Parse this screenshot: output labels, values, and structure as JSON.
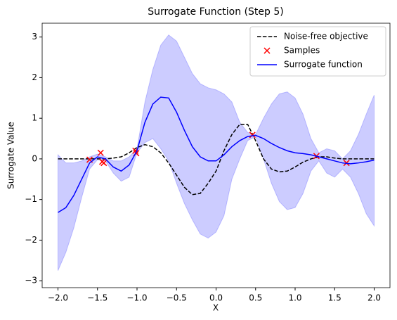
{
  "chart_data": {
    "type": "line",
    "title": "Surrogate Function (Step 5)",
    "xlabel": "X",
    "ylabel": "Surrogate Value",
    "xlim": [
      -2.2,
      2.2
    ],
    "ylim": [
      -3.17,
      3.34
    ],
    "xticks": [
      {
        "value": -2,
        "label": "−2.0"
      },
      {
        "value": -1.5,
        "label": "−1.5"
      },
      {
        "value": -1,
        "label": "−1.0"
      },
      {
        "value": -0.5,
        "label": "−0.5"
      },
      {
        "value": 0,
        "label": "0.0"
      },
      0.5,
      {
        "value": 1,
        "label": "1.0"
      },
      1.5,
      {
        "value": 2,
        "label": "2.0"
      }
    ],
    "yticks": [
      {
        "value": -3,
        "label": "−3"
      },
      {
        "value": -2,
        "label": "−2"
      },
      {
        "value": -1,
        "label": "−1"
      },
      0,
      1,
      2,
      3
    ],
    "legend": "upper right",
    "x": [
      -2.0,
      -1.9,
      -1.8,
      -1.7,
      -1.6,
      -1.5,
      -1.4,
      -1.3,
      -1.2,
      -1.1,
      -1.0,
      -0.9,
      -0.8,
      -0.7,
      -0.6,
      -0.5,
      -0.4,
      -0.3,
      -0.2,
      -0.1,
      0.0,
      0.1,
      0.2,
      0.3,
      0.4,
      0.5,
      0.6,
      0.7,
      0.8,
      0.9,
      1.0,
      1.1,
      1.2,
      1.3,
      1.4,
      1.5,
      1.6,
      1.7,
      1.8,
      1.9,
      2.0
    ],
    "band": {
      "color": "#0000ff",
      "opacity": 0.2,
      "upper": [
        0.1,
        -0.1,
        -0.1,
        -0.05,
        0.05,
        0.12,
        0.05,
        -0.05,
        -0.05,
        0.05,
        0.25,
        1.4,
        2.2,
        2.8,
        3.05,
        2.9,
        2.5,
        2.1,
        1.85,
        1.75,
        1.7,
        1.6,
        1.4,
        0.9,
        0.65,
        0.6,
        1.0,
        1.35,
        1.6,
        1.65,
        1.5,
        1.1,
        0.5,
        0.15,
        0.25,
        0.2,
        0.0,
        0.2,
        0.6,
        1.1,
        1.57
      ],
      "lower": [
        -2.75,
        -2.3,
        -1.7,
        -0.95,
        -0.25,
        -0.02,
        -0.05,
        -0.35,
        -0.55,
        -0.45,
        0.15,
        0.4,
        0.5,
        0.25,
        -0.05,
        -0.6,
        -1.1,
        -1.5,
        -1.85,
        -1.95,
        -1.8,
        -1.4,
        -0.5,
        0.0,
        0.45,
        0.55,
        0.0,
        -0.6,
        -1.05,
        -1.25,
        -1.2,
        -0.85,
        -0.3,
        -0.05,
        -0.35,
        -0.45,
        -0.25,
        -0.45,
        -0.85,
        -1.35,
        -1.65
      ]
    },
    "series": [
      {
        "name": "Noise-free objective",
        "color": "#000000",
        "dashed": true,
        "values": [
          0,
          0,
          0,
          0,
          0,
          0,
          0,
          0.02,
          0.05,
          0.15,
          0.28,
          0.35,
          0.3,
          0.15,
          -0.1,
          -0.4,
          -0.7,
          -0.88,
          -0.85,
          -0.6,
          -0.3,
          0.2,
          0.6,
          0.85,
          0.85,
          0.45,
          0.0,
          -0.25,
          -0.32,
          -0.3,
          -0.2,
          -0.08,
          0.0,
          0.05,
          0.05,
          0.02,
          0,
          0,
          0,
          0,
          0
        ]
      },
      {
        "name": "Samples",
        "type": "scatter",
        "color": "#ff0000",
        "x": [
          -1.6,
          -1.46,
          -1.44,
          -1.42,
          -1.02,
          -1.01,
          0.46,
          1.27,
          1.65
        ],
        "values": [
          -0.02,
          0.15,
          -0.07,
          -0.1,
          0.2,
          0.14,
          0.59,
          0.07,
          -0.1
        ]
      },
      {
        "name": "Surrogate function",
        "color": "#0000ff",
        "values": [
          -1.32,
          -1.2,
          -0.9,
          -0.5,
          -0.1,
          0.05,
          0.0,
          -0.2,
          -0.3,
          -0.15,
          0.2,
          0.9,
          1.35,
          1.52,
          1.5,
          1.15,
          0.7,
          0.3,
          0.05,
          -0.05,
          -0.05,
          0.1,
          0.3,
          0.45,
          0.55,
          0.58,
          0.5,
          0.38,
          0.28,
          0.2,
          0.15,
          0.13,
          0.1,
          0.05,
          0.0,
          -0.05,
          -0.1,
          -0.12,
          -0.1,
          -0.07,
          -0.03
        ]
      }
    ]
  }
}
